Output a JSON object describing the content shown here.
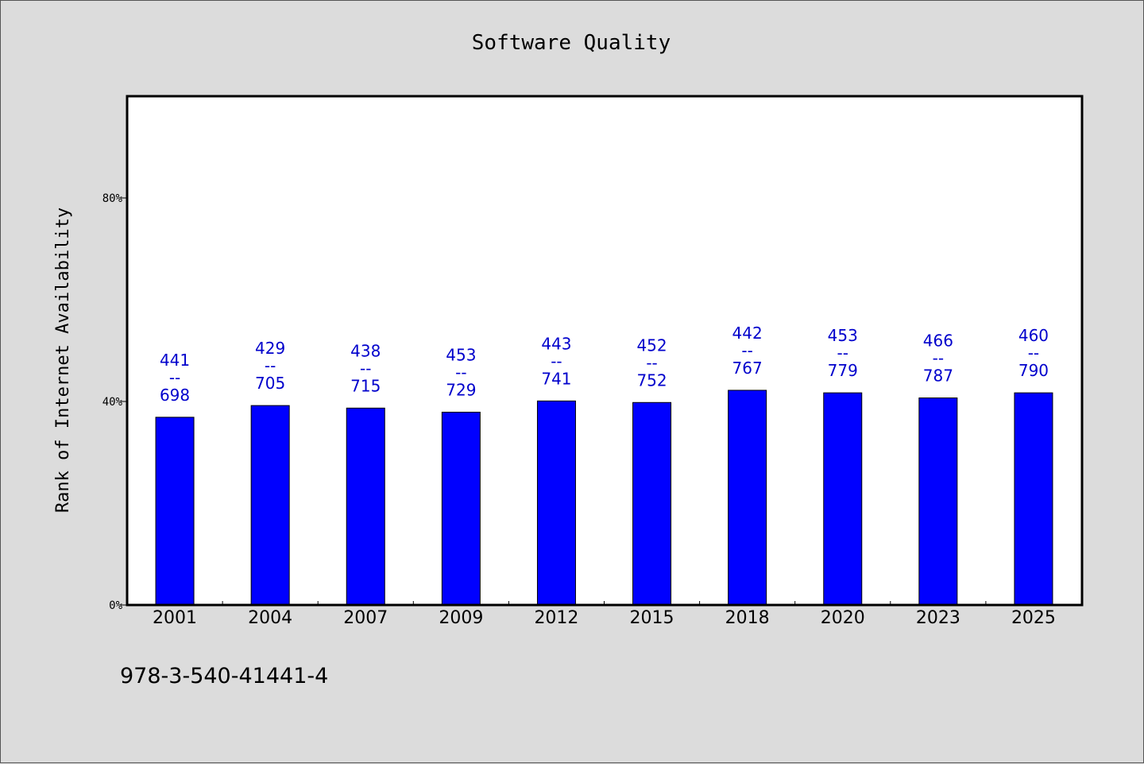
{
  "chart_data": {
    "type": "bar",
    "title": "Software Quality",
    "ylabel": "Rank of Internet Availability",
    "xlabel": "",
    "ylim": [
      0,
      100
    ],
    "yticks": [
      {
        "value": 0,
        "label": "0%"
      },
      {
        "value": 40,
        "label": "40%"
      },
      {
        "value": 80,
        "label": "80%"
      }
    ],
    "categories": [
      "2001",
      "2004",
      "2007",
      "2009",
      "2012",
      "2015",
      "2018",
      "2020",
      "2023",
      "2025"
    ],
    "values": [
      36.9,
      39.2,
      38.7,
      37.9,
      40.1,
      39.8,
      42.2,
      41.7,
      40.7,
      41.7
    ],
    "data_labels": [
      {
        "top": "441",
        "sep": "--",
        "bottom": "698"
      },
      {
        "top": "429",
        "sep": "--",
        "bottom": "705"
      },
      {
        "top": "438",
        "sep": "--",
        "bottom": "715"
      },
      {
        "top": "453",
        "sep": "--",
        "bottom": "729"
      },
      {
        "top": "443",
        "sep": "--",
        "bottom": "741"
      },
      {
        "top": "452",
        "sep": "--",
        "bottom": "752"
      },
      {
        "top": "442",
        "sep": "--",
        "bottom": "767"
      },
      {
        "top": "453",
        "sep": "--",
        "bottom": "779"
      },
      {
        "top": "466",
        "sep": "--",
        "bottom": "787"
      },
      {
        "top": "460",
        "sep": "--",
        "bottom": "790"
      }
    ],
    "bar_color": "#0000ff",
    "label_color": "#0000cc",
    "grid": false,
    "legend": "none"
  },
  "footer": {
    "code": "978-3-540-41441-4"
  }
}
